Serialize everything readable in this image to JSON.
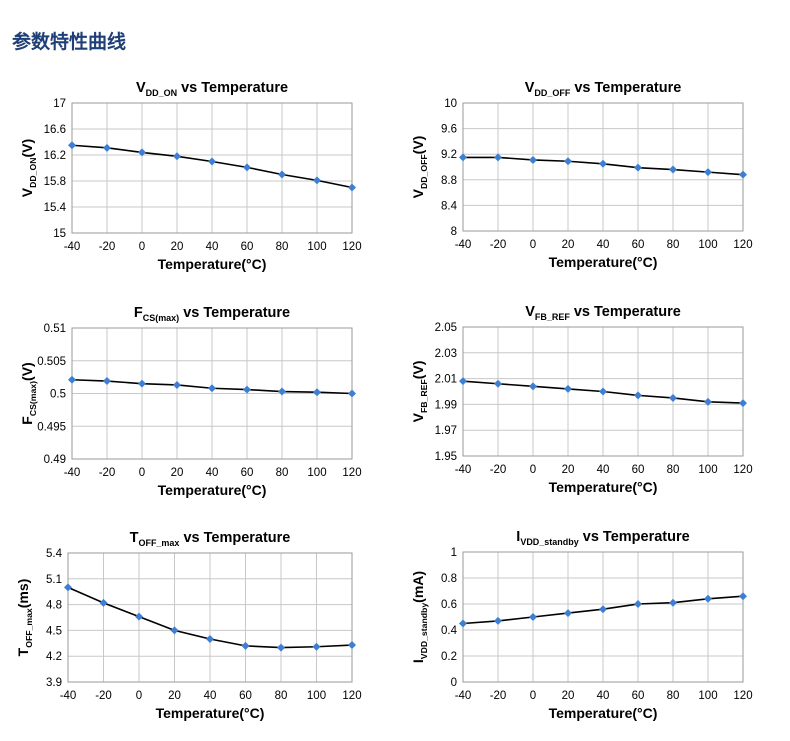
{
  "page": {
    "heading": "参数特性曲线"
  },
  "colors": {
    "line": "#000000",
    "marker": "#3f7fd2",
    "grid": "#c8c8c8",
    "heading": "#1f3f77"
  },
  "chart_data": [
    {
      "type": "line",
      "title": {
        "main": "V",
        "sub": "DD_ON",
        "rest": " vs Temperature"
      },
      "ylabel": {
        "main": "V",
        "sub": "DD_ON",
        "rest": "(V)"
      },
      "xlabel": "Temperature(°C)",
      "x": [
        -40,
        -20,
        0,
        20,
        40,
        60,
        80,
        100,
        120
      ],
      "y": [
        16.35,
        16.31,
        16.24,
        16.18,
        16.1,
        16.01,
        15.9,
        15.81,
        15.7
      ],
      "xticks": [
        "-40",
        "-20",
        "0",
        "20",
        "40",
        "60",
        "80",
        "100",
        "120"
      ],
      "yticks": [
        "15",
        "15.4",
        "15.8",
        "16.2",
        "16.6",
        "17"
      ],
      "ylim": [
        15,
        17
      ],
      "grid": true
    },
    {
      "type": "line",
      "title": {
        "main": "V",
        "sub": "DD_OFF",
        "rest": " vs Temperature"
      },
      "ylabel": {
        "main": "V",
        "sub": "DD_OFF",
        "rest": "(V)"
      },
      "xlabel": "Temperature(°C)",
      "x": [
        -40,
        -20,
        0,
        20,
        40,
        60,
        80,
        100,
        120
      ],
      "y": [
        9.15,
        9.15,
        9.11,
        9.09,
        9.05,
        8.99,
        8.96,
        8.92,
        8.88
      ],
      "xticks": [
        "-40",
        "-20",
        "0",
        "20",
        "40",
        "60",
        "80",
        "100",
        "120"
      ],
      "yticks": [
        "8",
        "8.4",
        "8.8",
        "9.2",
        "9.6",
        "10"
      ],
      "ylim": [
        8,
        10
      ],
      "grid": true
    },
    {
      "type": "line",
      "title": {
        "main": "F",
        "sub": "CS(max)",
        "rest": " vs Temperature"
      },
      "ylabel": {
        "main": "F",
        "sub": "CS(max)",
        "rest": "(V)"
      },
      "xlabel": "Temperature(°C)",
      "x": [
        -40,
        -20,
        0,
        20,
        40,
        60,
        80,
        100,
        120
      ],
      "y": [
        0.5021,
        0.5019,
        0.5015,
        0.5013,
        0.5008,
        0.5006,
        0.5003,
        0.5002,
        0.5
      ],
      "xticks": [
        "-40",
        "-20",
        "0",
        "20",
        "40",
        "60",
        "80",
        "100",
        "120"
      ],
      "yticks": [
        "0.49",
        "0.495",
        "0.5",
        "0.505",
        "0.51"
      ],
      "ylim": [
        0.49,
        0.51
      ],
      "grid": true
    },
    {
      "type": "line",
      "title": {
        "main": "V",
        "sub": "FB_REF",
        "rest": "  vs Temperature"
      },
      "ylabel": {
        "main": "V",
        "sub": "FB_REF",
        "rest": "(V)"
      },
      "xlabel": "Temperature(°C)",
      "x": [
        -40,
        -20,
        0,
        20,
        40,
        60,
        80,
        100,
        120
      ],
      "y": [
        2.008,
        2.006,
        2.004,
        2.002,
        2.0,
        1.997,
        1.995,
        1.992,
        1.991
      ],
      "xticks": [
        "-40",
        "-20",
        "0",
        "20",
        "40",
        "60",
        "80",
        "100",
        "120"
      ],
      "yticks": [
        "1.95",
        "1.97",
        "1.99",
        "2.01",
        "2.03",
        "2.05"
      ],
      "ylim": [
        1.95,
        2.05
      ],
      "grid": true
    },
    {
      "type": "line",
      "title": {
        "main": "T",
        "sub": "OFF_max",
        "rest": " vs Temperature"
      },
      "ylabel": {
        "main": "T",
        "sub": "OFF_max",
        "rest": "(ms)"
      },
      "xlabel": "Temperature(°C)",
      "x": [
        -40,
        -20,
        0,
        20,
        40,
        60,
        80,
        100,
        120
      ],
      "y": [
        5.0,
        4.82,
        4.66,
        4.5,
        4.4,
        4.32,
        4.3,
        4.31,
        4.33
      ],
      "xticks": [
        "-40",
        "-20",
        "0",
        "20",
        "40",
        "60",
        "80",
        "100",
        "120"
      ],
      "yticks": [
        "3.9",
        "4.2",
        "4.5",
        "4.8",
        "5.1",
        "5.4"
      ],
      "ylim": [
        3.9,
        5.4
      ],
      "grid": true
    },
    {
      "type": "line",
      "title": {
        "main": "I",
        "sub": "VDD_standby",
        "rest": " vs Temperature"
      },
      "ylabel": {
        "main": "I",
        "sub": "VDD_standby",
        "rest": "(mA)"
      },
      "xlabel": "Temperature(°C)",
      "x": [
        -40,
        -20,
        0,
        20,
        40,
        60,
        80,
        100,
        120
      ],
      "y": [
        0.45,
        0.47,
        0.5,
        0.53,
        0.56,
        0.6,
        0.61,
        0.64,
        0.66
      ],
      "xticks": [
        "-40",
        "-20",
        "0",
        "20",
        "40",
        "60",
        "80",
        "100",
        "120"
      ],
      "yticks": [
        "0",
        "0.2",
        "0.4",
        "0.6",
        "0.8",
        "1"
      ],
      "ylim": [
        0,
        1
      ],
      "grid": true
    }
  ]
}
